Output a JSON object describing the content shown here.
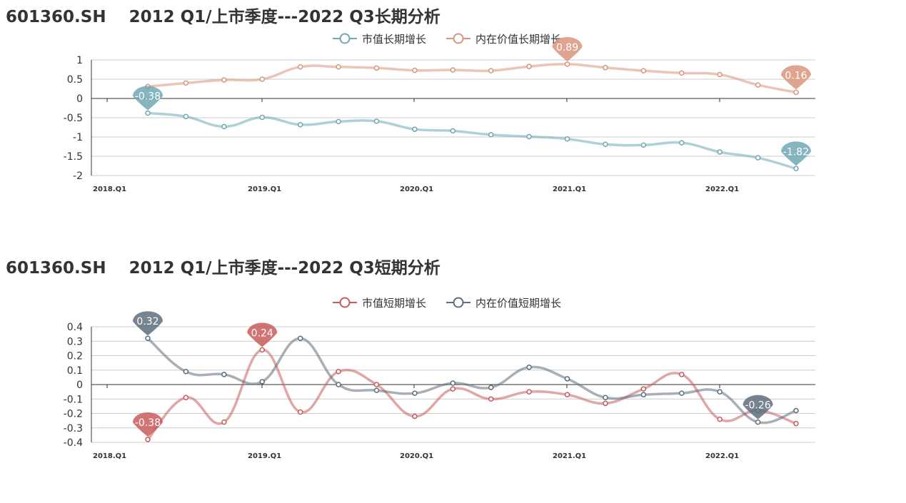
{
  "chart_data": [
    {
      "id": "top",
      "type": "line",
      "title": "601360.SH    2012 Q1/上市季度---2022 Q3长期分析",
      "x_tick_labels": [
        "2018.Q1",
        "2019.Q1",
        "2020.Q1",
        "2021.Q1",
        "2022.Q1"
      ],
      "ylim": [
        -2,
        1
      ],
      "y_ticks": [
        "1",
        "0.5",
        "0",
        "-0.5",
        "-1",
        "-1.5",
        "-2"
      ],
      "y_tick_values": [
        1,
        0.5,
        0,
        -0.5,
        -1,
        -1.5,
        -2
      ],
      "grid": true,
      "legend_position": "top-center",
      "series": [
        {
          "name": "市值长期增长",
          "color": "#6fa8b5",
          "values": [
            -0.38,
            -0.47,
            -0.73,
            -0.49,
            -0.68,
            -0.6,
            -0.59,
            -0.8,
            -0.84,
            -0.94,
            -0.99,
            -1.05,
            -1.19,
            -1.21,
            -1.15,
            -1.39,
            -1.54,
            -1.82
          ],
          "annotations": [
            {
              "index": 0,
              "label": "-0.38"
            },
            {
              "index": 17,
              "label": "-1.82"
            }
          ]
        },
        {
          "name": "内在价值长期增长",
          "color": "#d9957c",
          "values": [
            0.31,
            0.4,
            0.48,
            0.5,
            0.82,
            0.82,
            0.79,
            0.73,
            0.74,
            0.72,
            0.83,
            0.89,
            0.8,
            0.72,
            0.66,
            0.62,
            0.35,
            0.16
          ],
          "annotations": [
            {
              "index": 11,
              "label": "0.89"
            },
            {
              "index": 17,
              "label": "0.16"
            }
          ]
        }
      ]
    },
    {
      "id": "bottom",
      "type": "line",
      "title": "601360.SH    2012 Q1/上市季度---2022 Q3短期分析",
      "x_tick_labels": [
        "2018.Q1",
        "2019.Q1",
        "2020.Q1",
        "2021.Q1",
        "2022.Q1"
      ],
      "ylim": [
        -0.4,
        0.4
      ],
      "y_ticks": [
        "0.4",
        "0.3",
        "0.2",
        "0.1",
        "0",
        "-0.1",
        "-0.2",
        "-0.3",
        "-0.4"
      ],
      "y_tick_values": [
        0.4,
        0.3,
        0.2,
        0.1,
        0,
        -0.1,
        -0.2,
        -0.3,
        -0.4
      ],
      "grid": true,
      "legend_position": "top-center",
      "series": [
        {
          "name": "市值短期增长",
          "color": "#c85c5c",
          "values": [
            -0.38,
            -0.09,
            -0.26,
            0.24,
            -0.19,
            0.09,
            0.0,
            -0.22,
            -0.03,
            -0.1,
            -0.05,
            -0.07,
            -0.13,
            -0.03,
            0.07,
            -0.24,
            -0.18,
            -0.27
          ],
          "annotations": [
            {
              "index": 0,
              "label": "-0.38"
            },
            {
              "index": 3,
              "label": "0.24"
            }
          ]
        },
        {
          "name": "内在价值短期增长",
          "color": "#5e6d7c",
          "values": [
            0.32,
            0.09,
            0.07,
            0.02,
            0.32,
            0.0,
            -0.04,
            -0.06,
            0.01,
            -0.02,
            0.12,
            0.04,
            -0.09,
            -0.07,
            -0.06,
            -0.05,
            -0.26,
            -0.18
          ],
          "annotations": [
            {
              "index": 0,
              "label": "0.32"
            },
            {
              "index": 16,
              "label": "-0.26"
            }
          ]
        }
      ]
    }
  ]
}
